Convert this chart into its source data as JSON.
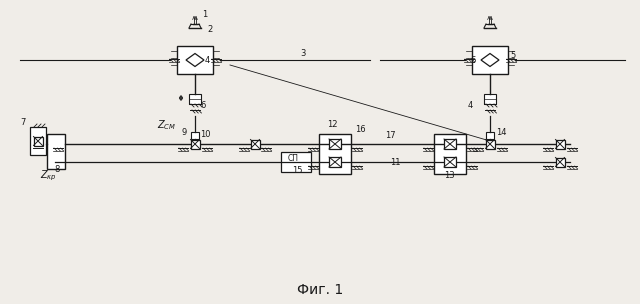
{
  "title": "Фиг. 1",
  "bg_color": "#f0ede8",
  "line_color": "#1a1a1a",
  "fig_width": 6.4,
  "fig_height": 3.04,
  "dpi": 100
}
